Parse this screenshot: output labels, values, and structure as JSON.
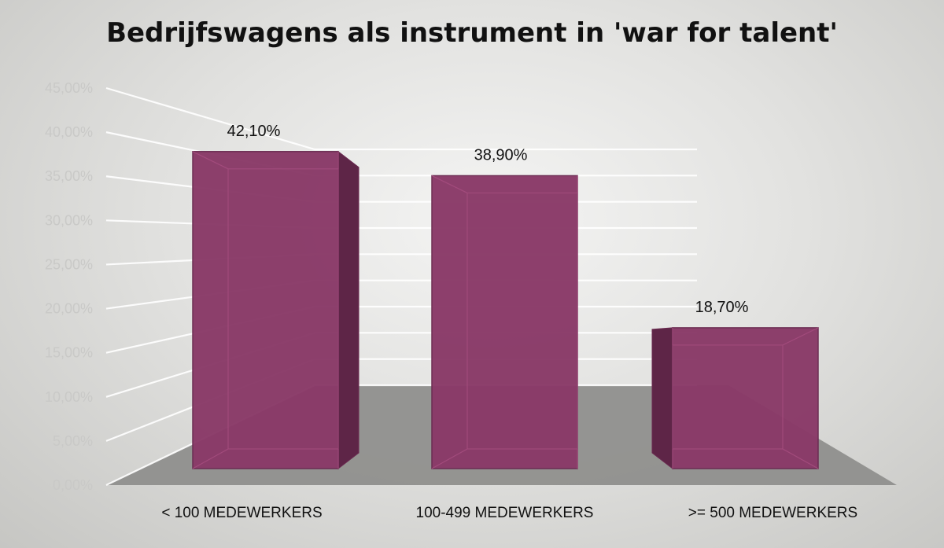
{
  "chart_data": {
    "type": "bar",
    "title": "Bedrijfswagens als instrument in 'war for talent'",
    "categories": [
      "< 100 MEDEWERKERS",
      "100-499 MEDEWERKERS",
      ">= 500 MEDEWERKERS"
    ],
    "values": [
      42.1,
      38.9,
      18.7
    ],
    "data_labels": [
      "42,10%",
      "38,90%",
      "18,70%"
    ],
    "y_ticks": [
      0,
      5,
      10,
      15,
      20,
      25,
      30,
      35,
      40,
      45
    ],
    "y_tick_labels": [
      "0,00%",
      "5,00%",
      "10,00%",
      "15,00%",
      "20,00%",
      "25,00%",
      "30,00%",
      "35,00%",
      "40,00%",
      "45,00%"
    ],
    "ylim": [
      0,
      45
    ],
    "grid": true,
    "style": "3d-bar",
    "colors": {
      "bar_front": "#8a3a68",
      "bar_side": "#5e2547",
      "bar_top": "#a24b7c",
      "bar_edge": "#6a2a50",
      "grid": "#ffffff",
      "floor": "#8f8f8d"
    }
  }
}
